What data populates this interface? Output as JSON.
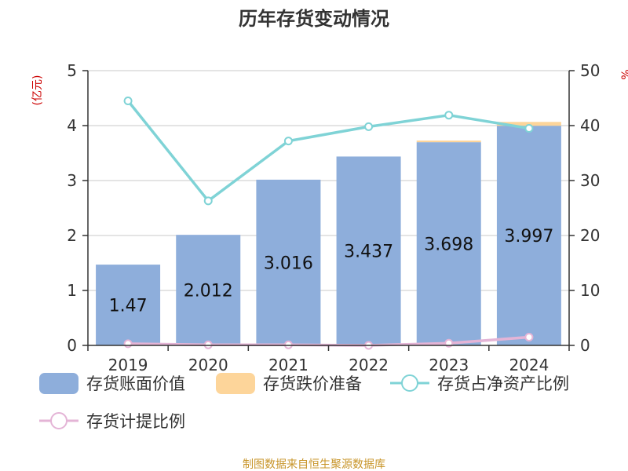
{
  "chart_data": {
    "type": "bar",
    "title": "历年存货变动情况",
    "categories": [
      "2019",
      "2020",
      "2021",
      "2022",
      "2023",
      "2024"
    ],
    "left_axis": {
      "unit": "(亿元)",
      "ylim": [
        0,
        5
      ],
      "ticks": [
        "0",
        "1",
        "2",
        "3",
        "4",
        "5"
      ]
    },
    "right_axis": {
      "unit": "%",
      "ylim": [
        0,
        50
      ],
      "ticks": [
        "0",
        "10",
        "20",
        "30",
        "40",
        "50"
      ]
    },
    "series": [
      {
        "name": "存货账面价值",
        "type": "bar",
        "axis": "left",
        "color": "#8eaedb",
        "values": [
          1.47,
          2.012,
          3.016,
          3.437,
          3.698,
          3.997
        ],
        "labels": [
          "1.47",
          "2.012",
          "3.016",
          "3.437",
          "3.698",
          "3.997"
        ]
      },
      {
        "name": "存货跌价准备",
        "type": "bar",
        "stacked": true,
        "axis": "left",
        "color": "#fdd59a",
        "values": [
          0.0,
          0.0,
          0.0,
          0.0,
          0.03,
          0.07
        ]
      },
      {
        "name": "存货占净资产比例",
        "type": "line",
        "axis": "right",
        "color": "#7fd3d6",
        "values": [
          44.5,
          26.3,
          37.2,
          39.8,
          41.9,
          39.5
        ]
      },
      {
        "name": "存货计提比例",
        "type": "line",
        "axis": "right",
        "color": "#e4b4d6",
        "values": [
          0.3,
          0.1,
          0.1,
          0.0,
          0.4,
          1.5
        ]
      }
    ],
    "grid": true,
    "legend_position": "bottom"
  },
  "footer": {
    "source": "制图数据来自恒生聚源数据库"
  }
}
